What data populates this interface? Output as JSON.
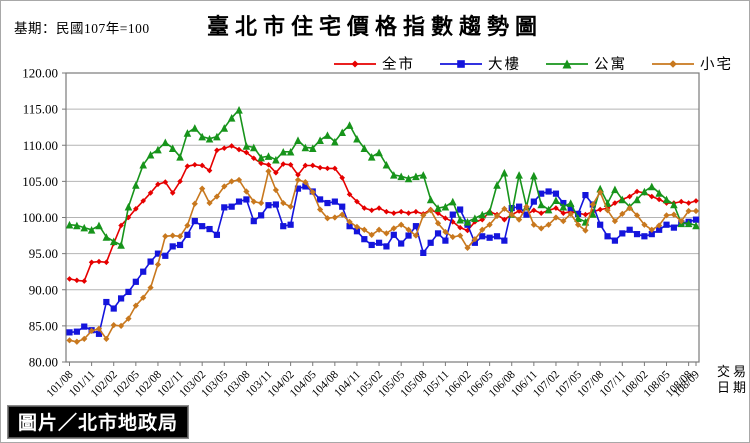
{
  "header": {
    "base_period": "基期：民國107年=100",
    "title": "臺北市住宅價格指數趨勢圖"
  },
  "watermark": "圖片／北市地政局",
  "chart_data": {
    "type": "line",
    "title": "臺北市住宅價格指數趨勢圖",
    "base_note": "基期：民國107年=100",
    "xlabel_lines": [
      "交易",
      "日期"
    ],
    "ylabel": "",
    "ylim": [
      80,
      120
    ],
    "grid": true,
    "legend_position": "top-right",
    "y_ticks": [
      "120.00",
      "115.00",
      "110.00",
      "105.00",
      "100.00",
      "95.00",
      "90.00",
      "85.00",
      "80.00"
    ],
    "n_points": 86,
    "x_start": "101/08",
    "x_end": "108/09",
    "x_tick_indices": [
      0,
      3,
      6,
      9,
      12,
      15,
      18,
      21,
      24,
      27,
      30,
      33,
      36,
      39,
      42,
      45,
      48,
      51,
      54,
      57,
      60,
      63,
      66,
      69,
      72,
      75,
      78,
      81,
      84,
      85
    ],
    "x_tick_labels": [
      "101/08",
      "101/11",
      "102/02",
      "102/05",
      "102/08",
      "102/11",
      "103/02",
      "103/05",
      "103/08",
      "103/11",
      "104/02",
      "104/05",
      "104/08",
      "104/11",
      "105/02",
      "105/05",
      "105/08",
      "105/11",
      "106/02",
      "106/05",
      "106/08",
      "106/11",
      "107/02",
      "107/05",
      "107/08",
      "107/11",
      "108/02",
      "108/05",
      "108/08",
      "108/09"
    ],
    "series": [
      {
        "name": "全市",
        "color": "#e60000",
        "marker": "diamond",
        "marker_size": 2.8,
        "values": [
          91.5,
          91.3,
          91.2,
          93.8,
          93.9,
          93.8,
          96.4,
          98.9,
          100.0,
          101.2,
          102.3,
          103.4,
          104.6,
          104.9,
          103.4,
          105.0,
          107.1,
          107.3,
          107.2,
          106.5,
          109.3,
          109.6,
          109.9,
          109.4,
          109.0,
          108.2,
          107.5,
          107.3,
          106.2,
          107.4,
          107.3,
          105.9,
          107.2,
          107.2,
          106.9,
          106.8,
          106.8,
          105.5,
          103.2,
          102.2,
          101.3,
          101.0,
          101.3,
          100.8,
          100.6,
          100.8,
          100.6,
          100.8,
          100.5,
          101.1,
          100.6,
          99.9,
          99.4,
          98.6,
          98.2,
          99.4,
          99.7,
          100.8,
          100.4,
          99.7,
          100.4,
          100.9,
          100.4,
          101.0,
          100.6,
          101.0,
          101.3,
          100.6,
          100.8,
          100.6,
          100.4,
          100.8,
          101.1,
          101.3,
          102.0,
          102.5,
          102.9,
          103.6,
          103.4,
          102.9,
          102.5,
          102.0,
          102.0,
          102.2,
          102.0,
          102.3
        ]
      },
      {
        "name": "大樓",
        "color": "#1414dc",
        "marker": "square",
        "marker_size": 3.1,
        "values": [
          84.1,
          84.2,
          84.9,
          84.4,
          83.9,
          88.3,
          87.4,
          88.8,
          89.7,
          91.1,
          92.5,
          93.9,
          95.0,
          94.7,
          96.0,
          96.2,
          97.6,
          99.5,
          98.8,
          98.4,
          97.6,
          101.4,
          101.5,
          102.2,
          102.5,
          99.5,
          100.3,
          101.7,
          101.8,
          98.8,
          99.0,
          104.0,
          104.3,
          103.6,
          102.5,
          102.0,
          102.2,
          101.5,
          98.8,
          98.1,
          97.0,
          96.2,
          96.5,
          96.0,
          97.6,
          96.4,
          97.5,
          98.8,
          95.1,
          96.5,
          97.8,
          96.8,
          100.4,
          101.1,
          99.0,
          96.5,
          97.4,
          97.2,
          97.4,
          96.8,
          101.3,
          101.5,
          100.4,
          102.2,
          103.3,
          103.6,
          103.3,
          102.0,
          101.3,
          100.5,
          103.1,
          101.8,
          99.0,
          97.4,
          96.8,
          97.8,
          98.3,
          97.7,
          97.4,
          97.7,
          98.3,
          99.0,
          98.6,
          99.2,
          99.4,
          99.7
        ]
      },
      {
        "name": "公寓",
        "color": "#17941b",
        "marker": "triangle",
        "marker_size": 3.8,
        "values": [
          99.0,
          98.9,
          98.6,
          98.3,
          98.9,
          97.3,
          96.7,
          96.2,
          101.5,
          104.5,
          107.3,
          108.7,
          109.4,
          110.4,
          109.6,
          108.4,
          111.7,
          112.4,
          111.2,
          110.9,
          111.2,
          112.4,
          113.8,
          114.9,
          109.9,
          109.7,
          108.3,
          108.5,
          108.0,
          109.1,
          109.1,
          110.7,
          109.7,
          109.6,
          110.7,
          111.4,
          110.5,
          111.8,
          112.8,
          110.9,
          109.6,
          108.4,
          109.0,
          107.3,
          105.9,
          105.7,
          105.4,
          105.7,
          105.9,
          102.5,
          101.3,
          101.5,
          102.2,
          99.7,
          99.4,
          99.9,
          100.4,
          100.8,
          104.5,
          106.2,
          100.5,
          105.9,
          101.5,
          105.8,
          101.8,
          101.1,
          102.4,
          101.5,
          102.0,
          99.9,
          99.4,
          100.5,
          104.0,
          102.0,
          103.9,
          102.5,
          101.5,
          102.5,
          103.6,
          104.3,
          103.4,
          102.5,
          101.8,
          99.2,
          99.2,
          98.9
        ]
      },
      {
        "name": "小宅",
        "color": "#c8781e",
        "marker": "diamond",
        "marker_size": 3.1,
        "values": [
          83.0,
          82.8,
          83.2,
          84.3,
          84.6,
          83.2,
          85.1,
          85.0,
          86.0,
          87.8,
          88.9,
          90.3,
          93.5,
          97.4,
          97.5,
          97.4,
          98.9,
          101.9,
          104.0,
          102.0,
          102.9,
          104.3,
          105.0,
          105.2,
          103.6,
          102.2,
          102.0,
          106.4,
          103.8,
          102.0,
          101.5,
          105.2,
          104.9,
          103.5,
          101.1,
          99.9,
          100.0,
          100.4,
          99.4,
          98.7,
          98.3,
          97.6,
          98.3,
          97.8,
          98.5,
          99.0,
          98.3,
          97.5,
          100.3,
          101.0,
          99.2,
          98.0,
          97.3,
          97.5,
          95.8,
          97.0,
          98.3,
          99.0,
          100.2,
          101.2,
          100.4,
          99.7,
          101.5,
          99.0,
          98.5,
          99.0,
          100.0,
          99.5,
          100.5,
          99.0,
          98.2,
          101.8,
          103.5,
          101.0,
          99.5,
          100.5,
          101.3,
          100.3,
          99.0,
          98.3,
          98.9,
          100.3,
          100.4,
          99.5,
          100.9,
          100.9
        ]
      }
    ]
  }
}
